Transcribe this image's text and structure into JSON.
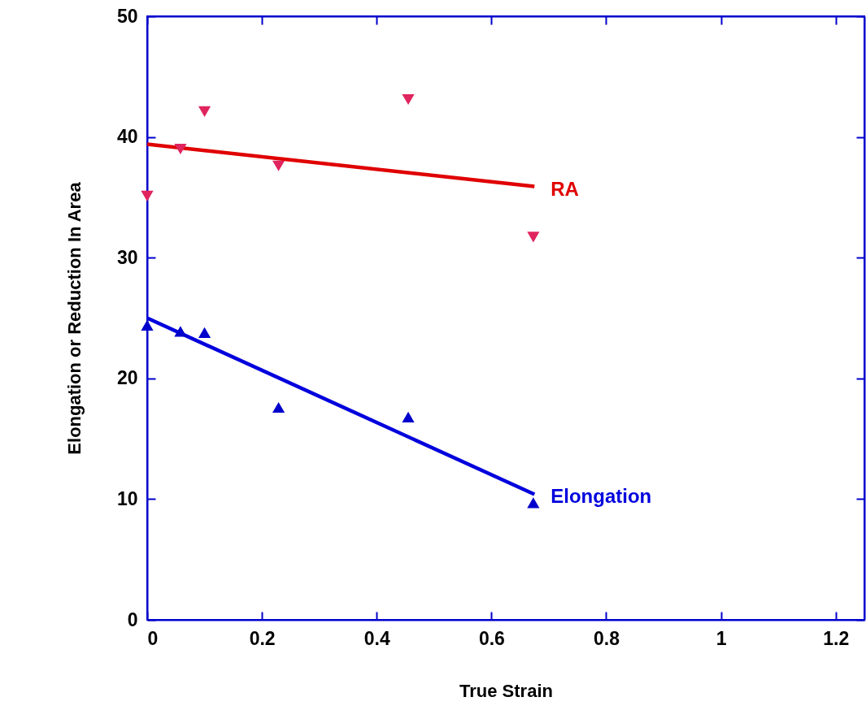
{
  "chart_data": {
    "type": "scatter",
    "xlabel": "True Strain",
    "ylabel": "Elongation or Reduction In Area",
    "xlim": [
      0,
      1.25
    ],
    "xticks": [
      0,
      0.2,
      0.4,
      0.6,
      0.8,
      1,
      1.2
    ],
    "ylim": [
      0,
      50
    ],
    "yticks": [
      0,
      10,
      20,
      30,
      40,
      50
    ],
    "grid": false,
    "series": [
      {
        "marker": "triangle-down",
        "color": "#e0245e",
        "x": [
          0,
          0.058,
          0.1,
          0.229,
          0.455,
          0.673
        ],
        "values": [
          35.1,
          39.0,
          42.1,
          37.6,
          43.1,
          31.7
        ]
      },
      {
        "marker": "triangle",
        "color": "#0000cc",
        "x": [
          0,
          0.058,
          0.1,
          0.229,
          0.455,
          0.673
        ],
        "values": [
          24.4,
          23.9,
          23.8,
          17.6,
          16.8,
          9.7
        ]
      },
      {
        "type": "line",
        "marker": "none",
        "line_style": "solid",
        "name": "RA",
        "color": "#e00000",
        "x": [
          0,
          0.675
        ],
        "values": [
          39.4,
          35.9
        ]
      },
      {
        "type": "line",
        "marker": "none",
        "line_style": "solid",
        "name": "Elongation",
        "color": "#0000dd",
        "x": [
          0,
          0.675
        ],
        "values": [
          25.0,
          10.4
        ]
      }
    ]
  }
}
